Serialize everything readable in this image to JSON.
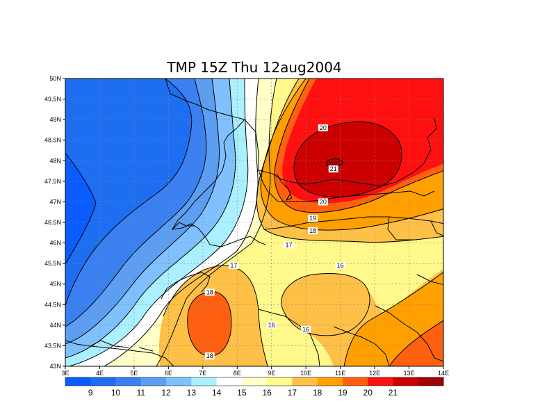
{
  "title": "TMP 15Z Thu 12aug2004",
  "x_ticks": [
    "3E",
    "4E",
    "5E",
    "6E",
    "7E",
    "8E",
    "9E",
    "10E",
    "11E",
    "12E",
    "13E",
    "14E"
  ],
  "y_ticks": [
    "50N",
    "49.5N",
    "49N",
    "48.5N",
    "48N",
    "47.5N",
    "47N",
    "46.5N",
    "46N",
    "45.5N",
    "45N",
    "44.5N",
    "44N",
    "43.5N",
    "43N"
  ],
  "colorbar": {
    "colors": [
      "#0a5cff",
      "#1e6ef2",
      "#3a80f0",
      "#5c9ef2",
      "#80c0ff",
      "#aaf0ff",
      "#ffffff",
      "#ffffc8",
      "#fff88a",
      "#ffc048",
      "#ffa000",
      "#ff6010",
      "#ff1010",
      "#cc0000",
      "#a00000"
    ],
    "labels": [
      "9",
      "10",
      "11",
      "12",
      "13",
      "14",
      "15",
      "16",
      "17",
      "18",
      "19",
      "20",
      "21"
    ]
  },
  "contour_labels": [
    "20",
    "21",
    "20",
    "19",
    "18",
    "17",
    "17",
    "16",
    "16",
    "18",
    "18",
    "16"
  ],
  "chart_data": {
    "type": "heatmap",
    "title": "TMP 15Z Thu 12aug2004",
    "x_range": [
      3,
      14
    ],
    "y_range": [
      43,
      50
    ],
    "x_unit": "degrees east",
    "y_unit": "degrees north",
    "levels": [
      9,
      10,
      11,
      12,
      13,
      14,
      15,
      16,
      17,
      18,
      19,
      20,
      21
    ],
    "field_notes": [
      {
        "label": "20",
        "lon": 10.5,
        "lat": 48.8
      },
      {
        "label": "21",
        "lon": 10.8,
        "lat": 47.8
      },
      {
        "label": "20",
        "lon": 10.5,
        "lat": 47.0
      },
      {
        "label": "19",
        "lon": 10.2,
        "lat": 46.6
      },
      {
        "label": "18",
        "lon": 10.2,
        "lat": 46.3
      },
      {
        "label": "17",
        "lon": 9.5,
        "lat": 45.95
      },
      {
        "label": "17",
        "lon": 7.9,
        "lat": 45.45
      },
      {
        "label": "16",
        "lon": 11.0,
        "lat": 45.45
      },
      {
        "label": "16",
        "lon": 10.0,
        "lat": 43.9
      },
      {
        "label": "18",
        "lon": 7.2,
        "lat": 44.8
      },
      {
        "label": "18",
        "lon": 7.2,
        "lat": 43.25
      },
      {
        "label": "16",
        "lon": 9.0,
        "lat": 44.0
      }
    ]
  }
}
